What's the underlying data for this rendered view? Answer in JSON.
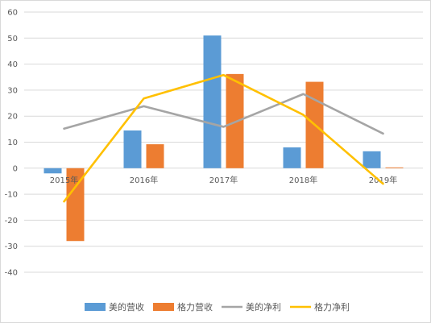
{
  "chart_data": {
    "type": "bar",
    "categories": [
      "2015年",
      "2016年",
      "2017年",
      "2018年",
      "2019年"
    ],
    "ylim": [
      -40,
      60
    ],
    "yticks": [
      -40,
      -30,
      -20,
      -10,
      0,
      10,
      20,
      30,
      40,
      50,
      60
    ],
    "grid": true,
    "legend_position": "bottom",
    "series": [
      {
        "name": "美的营收",
        "kind": "bar",
        "color": "#5B9BD5",
        "values": [
          -2,
          14.5,
          51,
          8,
          6.5
        ]
      },
      {
        "name": "格力营收",
        "kind": "bar",
        "color": "#ED7D31",
        "values": [
          -28,
          9.2,
          36.2,
          33.2,
          0.3
        ]
      },
      {
        "name": "美的净利",
        "kind": "line",
        "color": "#A5A5A5",
        "values": [
          15.2,
          23.8,
          15.9,
          28.5,
          13.3
        ]
      },
      {
        "name": "格力净利",
        "kind": "line",
        "color": "#FFC000",
        "values": [
          -12.8,
          26.8,
          35.8,
          20.5,
          -6
        ]
      }
    ]
  }
}
